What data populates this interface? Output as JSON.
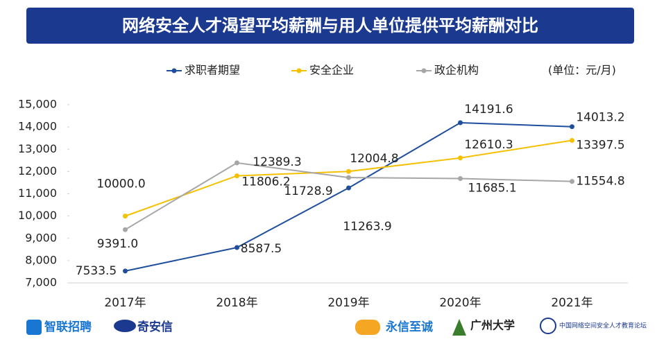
{
  "chart_data": {
    "type": "line",
    "title": "网络安全人才渴望平均薪酬与用人单位提供平均薪酬对比",
    "unit_label": "(单位：元/月)",
    "categories": [
      "2017年",
      "2018年",
      "2019年",
      "2020年",
      "2021年"
    ],
    "series": [
      {
        "name": "求职者期望",
        "color": "#1f4e9c",
        "values": [
          7533.5,
          8587.5,
          11263.9,
          14191.6,
          14013.2
        ],
        "value_labels": [
          "7533.5",
          "8587.5",
          "11263.9",
          "14191.6",
          "14013.2"
        ]
      },
      {
        "name": "安全企业",
        "color": "#f5c000",
        "values": [
          10000,
          11806.2,
          12004.8,
          12610.3,
          13397.5
        ],
        "value_labels": [
          "10000.0",
          "11806.2",
          "12004.8",
          "12610.3",
          "13397.5"
        ]
      },
      {
        "name": "政企机构",
        "color": "#a6a6a6",
        "values": [
          9391,
          12389.3,
          11728.9,
          11685.1,
          11554.8
        ],
        "value_labels": [
          "9391.0",
          "12389.3",
          "11728.9",
          "11685.1",
          "11554.8"
        ]
      }
    ],
    "ylim": [
      7000,
      15000
    ],
    "yticks": [
      {
        "value": 7000,
        "label": "7,000"
      },
      {
        "value": 8000,
        "label": "8,000"
      },
      {
        "value": 9000,
        "label": "9,000"
      },
      {
        "value": 10000,
        "label": "10,000"
      },
      {
        "value": 11000,
        "label": "11,000"
      },
      {
        "value": 12000,
        "label": "12,000"
      },
      {
        "value": 13000,
        "label": "13,000"
      },
      {
        "value": 14000,
        "label": "14,000"
      },
      {
        "value": 15000,
        "label": "15,000"
      }
    ],
    "grid": false,
    "legend": "top"
  },
  "footer": {
    "logos": [
      "智联招聘",
      "奇安信",
      "永信至诚",
      "广州大学",
      "中国网络空间安全人才教育论坛"
    ]
  }
}
